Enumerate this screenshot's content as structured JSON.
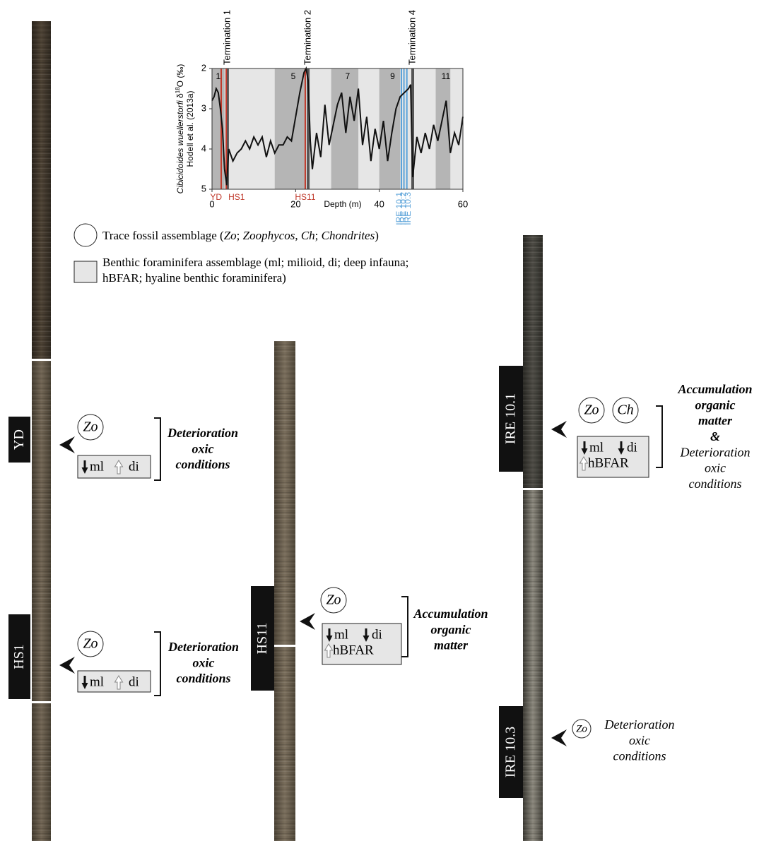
{
  "chart_data": {
    "type": "line",
    "y_label": [
      "Cibicidoides wuellerstorfi",
      " δ",
      "18",
      "O (‰)"
    ],
    "y_label_source": "Hodell et al. (2013a)",
    "x_label": "Depth (m)",
    "xlim": [
      0,
      60
    ],
    "xticks": [
      0,
      20,
      40,
      60
    ],
    "ylim": [
      2,
      5
    ],
    "y_reversed": true,
    "yticks": [
      2,
      3,
      4,
      5
    ],
    "color": "#111111",
    "x": [
      0,
      0.5,
      1,
      1.5,
      2,
      2.5,
      3,
      3.5,
      4,
      5,
      6,
      7,
      8,
      9,
      10,
      11,
      12,
      13,
      14,
      15,
      16,
      17,
      18,
      19,
      20,
      21,
      22,
      22.5,
      23,
      23.5,
      24,
      25,
      26,
      27,
      28,
      29,
      30,
      31,
      32,
      33,
      34,
      35,
      36,
      37,
      38,
      39,
      40,
      41,
      42,
      43,
      44,
      45,
      46,
      47,
      47.5,
      48,
      49,
      50,
      51,
      52,
      53,
      54,
      55,
      56,
      57,
      58,
      59,
      60
    ],
    "values": [
      2.8,
      2.7,
      2.5,
      2.6,
      3.0,
      3.5,
      4.5,
      4.9,
      4.0,
      4.3,
      4.1,
      4.0,
      3.8,
      4.0,
      3.7,
      3.9,
      3.7,
      4.2,
      3.8,
      4.1,
      3.9,
      3.9,
      3.7,
      3.8,
      3.2,
      2.6,
      2.1,
      2.0,
      2.3,
      3.8,
      4.5,
      3.6,
      4.2,
      2.9,
      3.9,
      3.4,
      2.9,
      2.6,
      3.6,
      2.7,
      3.3,
      2.5,
      3.9,
      3.2,
      4.3,
      3.5,
      4.0,
      3.3,
      4.3,
      3.6,
      3.0,
      2.7,
      2.6,
      2.5,
      2.4,
      4.7,
      3.7,
      4.1,
      3.6,
      4.0,
      3.4,
      3.8,
      3.3,
      2.8,
      4.1,
      3.6,
      3.9,
      3.2
    ],
    "stage_bands": [
      {
        "label": "1",
        "from": 0,
        "to": 3
      },
      {
        "label": "5",
        "from": 15,
        "to": 22.5
      },
      {
        "label": "7",
        "from": 28.5,
        "to": 35
      },
      {
        "label": "9",
        "from": 40,
        "to": 45
      },
      {
        "label": "11",
        "from": 53.5,
        "to": 57
      }
    ],
    "terminations": [
      {
        "label": "Termination 1",
        "depth": 3.7
      },
      {
        "label": "Termination 2",
        "depth": 23
      },
      {
        "label": "Termination 4",
        "depth": 48
      }
    ],
    "events": [
      {
        "label": "YD",
        "depth": 2.2,
        "color": "#c0392b"
      },
      {
        "label": "HS1",
        "depth": 3.4,
        "color": "#c0392b"
      },
      {
        "label": "HS11",
        "depth": 22.3,
        "color": "#c0392b"
      },
      {
        "label": "IRE 10.1",
        "depth": 45.3,
        "color": "#5ba3d9"
      },
      {
        "label": "IRE 10.2",
        "depth": 45.9,
        "color": "#5ba3d9"
      },
      {
        "label": "IRE 10.3",
        "depth": 46.6,
        "color": "#5ba3d9"
      }
    ]
  },
  "legend": [
    {
      "parts": [
        "Trace fossil assemblage (",
        "Zo",
        "; ",
        "Zoophycos",
        ", ",
        "Ch",
        "; ",
        "Chondrites",
        ")"
      ]
    },
    {
      "lines": [
        "Benthic foraminifera assemblage (ml; milioid, di; deep infauna;",
        "hBFAR; hyaline benthic foraminifera)"
      ]
    }
  ],
  "panels": [
    {
      "label": "YD",
      "trace": [
        "Zo"
      ],
      "foram": [
        "ml",
        "di"
      ],
      "interpretation": [
        "Deterioration",
        "oxic",
        "conditions"
      ]
    },
    {
      "label": "HS1",
      "trace": [
        "Zo"
      ],
      "foram": [
        "ml",
        "di"
      ],
      "interpretation": [
        "Deterioration",
        "oxic",
        "conditions"
      ]
    },
    {
      "label": "HS11",
      "trace": [
        "Zo"
      ],
      "foram": [
        "ml",
        "di",
        "hBFAR"
      ],
      "interpretation": [
        "Accumulation",
        "organic",
        "matter"
      ]
    },
    {
      "label": "IRE 10.1",
      "trace": [
        "Zo",
        "Ch"
      ],
      "foram": [
        "ml",
        "di",
        "hBFAR"
      ],
      "interpretation": [
        "Accumulation",
        "organic",
        "matter",
        "&",
        "Deterioration",
        "oxic",
        "conditions"
      ]
    },
    {
      "label": "IRE 10.3",
      "trace": [
        "Zo"
      ],
      "interpretation": [
        "Deterioration",
        "oxic",
        "conditions"
      ]
    }
  ]
}
